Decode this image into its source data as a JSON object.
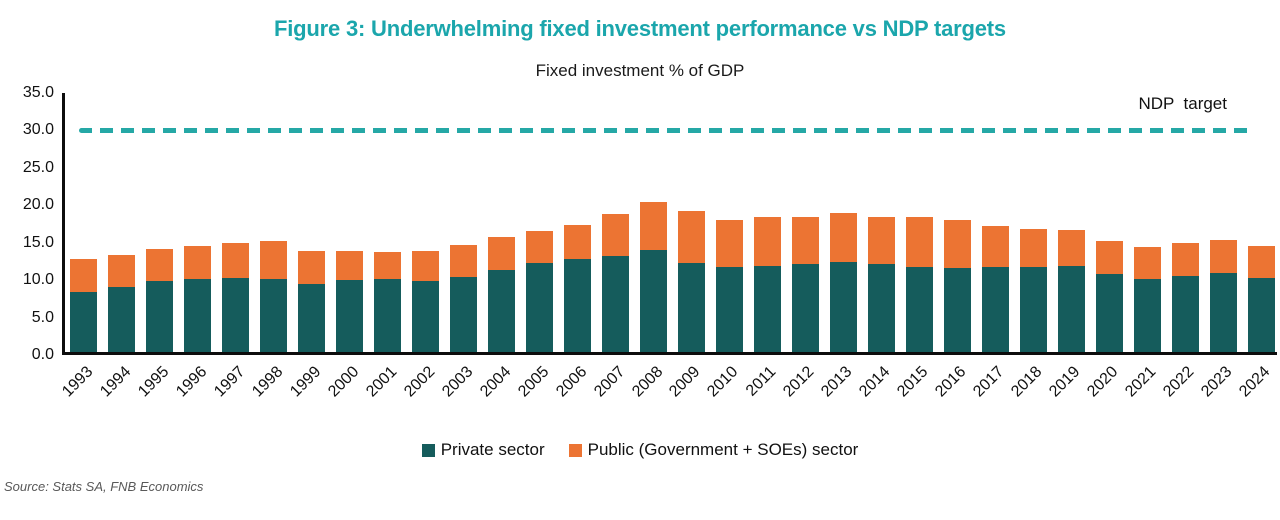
{
  "figure": {
    "title": "Figure 3: Underwhelming fixed investment performance vs NDP targets",
    "subtitle": "Fixed investment % of GDP",
    "source": "Source: Stats SA, FNB Economics"
  },
  "colors": {
    "title_teal": "#1BA6AC",
    "private_bar_teal": "#155C5C",
    "public_bar_orange": "#EC7433",
    "target_line_teal": "#25A8A6",
    "axis_black": "#0d0d0d",
    "source_gray": "#595959"
  },
  "chart_data": {
    "type": "bar",
    "stacked": true,
    "title": "Fixed investment % of GDP",
    "xlabel": "",
    "ylabel": "",
    "ylim": [
      0,
      35
    ],
    "ytick_step": 5,
    "grid": false,
    "legend_position": "bottom",
    "categories": [
      "1993",
      "1994",
      "1995",
      "1996",
      "1997",
      "1998",
      "1999",
      "2000",
      "2001",
      "2002",
      "2003",
      "2004",
      "2005",
      "2006",
      "2007",
      "2008",
      "2009",
      "2010",
      "2011",
      "2012",
      "2013",
      "2014",
      "2015",
      "2016",
      "2017",
      "2018",
      "2019",
      "2020",
      "2021",
      "2022",
      "2023",
      "2024"
    ],
    "series": [
      {
        "name": "Private sector",
        "color": "#155C5C",
        "values": [
          8.0,
          8.7,
          9.5,
          9.8,
          9.9,
          9.8,
          9.1,
          9.6,
          9.7,
          9.5,
          10.0,
          11.0,
          11.9,
          12.4,
          12.8,
          13.6,
          11.9,
          11.3,
          11.5,
          11.8,
          12.0,
          11.7,
          11.4,
          11.2,
          11.4,
          11.3,
          11.5,
          10.4,
          9.8,
          10.2,
          10.6,
          9.9
        ]
      },
      {
        "name": "Public (Government + SOEs) sector",
        "color": "#EC7433",
        "values": [
          4.4,
          4.2,
          4.2,
          4.3,
          4.7,
          5.0,
          4.4,
          3.9,
          3.7,
          4.0,
          4.3,
          4.3,
          4.2,
          4.6,
          5.6,
          6.4,
          7.0,
          6.3,
          6.6,
          6.2,
          6.6,
          6.3,
          6.6,
          6.4,
          5.5,
          5.2,
          4.8,
          4.4,
          4.2,
          4.3,
          4.3,
          4.3
        ]
      }
    ],
    "target_line": {
      "label": "NDP  target",
      "value": 30.0
    }
  }
}
